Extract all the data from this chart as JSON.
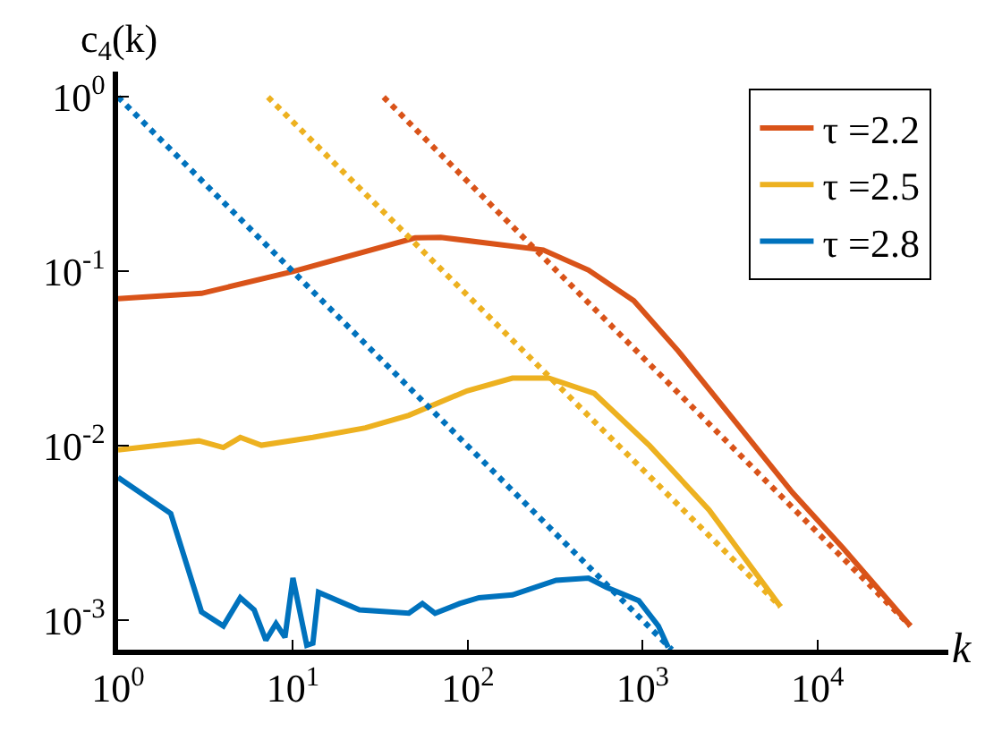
{
  "chart_data": {
    "type": "line",
    "xlabel": "k",
    "ylabel": "c$_{4}$(k)",
    "log": "xy",
    "grid": false,
    "legend": "top right",
    "marker": "none",
    "xlim": [
      1,
      56000
    ],
    "ylim": [
      0.00068,
      1.4
    ],
    "xticks": [
      {
        "value": 1,
        "label": "10$^{0}$"
      },
      {
        "value": 10,
        "label": "10$^{1}$"
      },
      {
        "value": 100,
        "label": "10$^{2}$"
      },
      {
        "value": 1000,
        "label": "10$^{3}$"
      },
      {
        "value": 10000,
        "label": "10$^{4}$"
      }
    ],
    "yticks": [
      {
        "value": 0.001,
        "label": "10$^{-3}$"
      },
      {
        "value": 0.01,
        "label": "10$^{-2}$"
      },
      {
        "value": 0.1,
        "label": "10$^{-1}$"
      },
      {
        "value": 1,
        "label": "10$^{0}$"
      }
    ],
    "series": [
      {
        "name": "τ =2.2",
        "color": "#d95319",
        "line_style": "solid",
        "x": [
          1,
          3,
          10,
          50,
          70,
          270,
          490,
          890,
          1600,
          7200,
          14000,
          34000
        ],
        "values": [
          0.07,
          0.075,
          0.1,
          0.156,
          0.157,
          0.133,
          0.102,
          0.068,
          0.035,
          0.0054,
          0.0026,
          0.00093
        ]
      },
      {
        "name": "τ =2.5",
        "color": "#edb120",
        "line_style": "solid",
        "x": [
          1,
          2.9,
          4,
          5,
          6.6,
          13,
          26,
          46,
          99,
          180,
          290,
          530,
          1100,
          2400,
          6150
        ],
        "values": [
          0.0095,
          0.0107,
          0.0098,
          0.0112,
          0.0101,
          0.0112,
          0.0127,
          0.015,
          0.0207,
          0.0245,
          0.0245,
          0.02,
          0.01,
          0.0043,
          0.0012
        ]
      },
      {
        "name": "τ =2.8",
        "color": "#0072bd",
        "line_style": "solid",
        "x": [
          1,
          2,
          3,
          4,
          5,
          6,
          7,
          8,
          9,
          10,
          12,
          13,
          14,
          24,
          46,
          55,
          65,
          90,
          116,
          180,
          320,
          490,
          620,
          950,
          1230,
          1400
        ],
        "values": [
          0.0066,
          0.0041,
          0.00112,
          0.00093,
          0.00135,
          0.00115,
          0.00077,
          0.00096,
          0.0008,
          0.00175,
          0.00072,
          0.00074,
          0.00145,
          0.00115,
          0.0011,
          0.00125,
          0.0011,
          0.00125,
          0.00135,
          0.0014,
          0.0017,
          0.00175,
          0.00155,
          0.0013,
          0.00093,
          0.0007
        ]
      },
      {
        "color": "#d95319",
        "line_style": "dotted",
        "x": [
          33,
          34000
        ],
        "values": [
          1,
          0.00093
        ]
      },
      {
        "color": "#edb120",
        "line_style": "dotted",
        "x": [
          7.2,
          6150
        ],
        "values": [
          1,
          0.0012
        ]
      },
      {
        "color": "#0072bd",
        "line_style": "dotted",
        "x": [
          1,
          1470
        ],
        "values": [
          1,
          0.00068
        ]
      }
    ]
  }
}
